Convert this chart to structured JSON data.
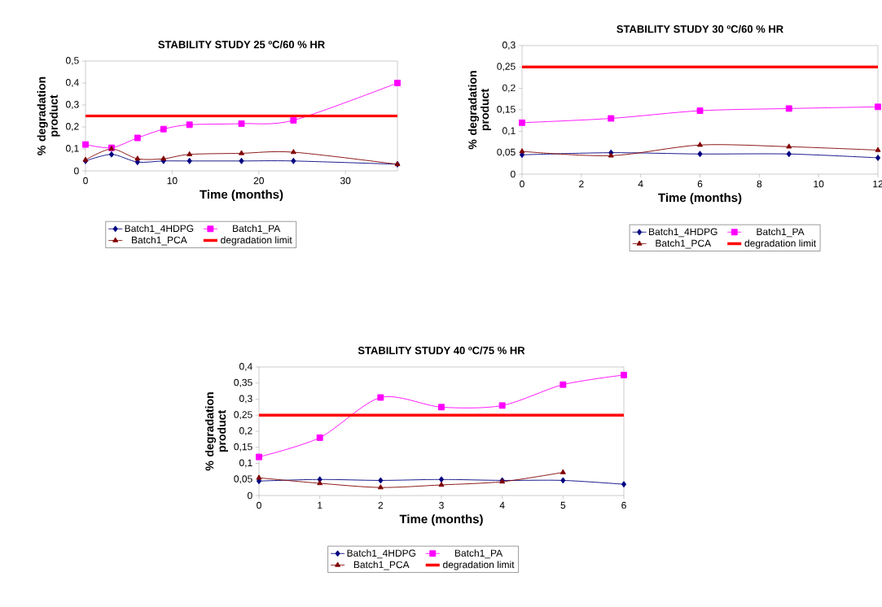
{
  "chart_data": [
    {
      "type": "line",
      "title": "STABILITY STUDY 25 ºC/60 % HR",
      "xlabel": "Time (months)",
      "ylabel": "% degradation product",
      "legend": "bottom",
      "x": [
        0,
        3,
        6,
        9,
        12,
        18,
        24,
        36
      ],
      "xlim": [
        0,
        36
      ],
      "xticks": [
        0,
        10,
        20,
        30
      ],
      "ylim": [
        0,
        0.5
      ],
      "yticks": [
        0,
        {
          "value": 0.1,
          "label": "0,1"
        },
        {
          "value": 0.2,
          "label": "0,2"
        },
        {
          "value": 0.3,
          "label": "0,3"
        },
        {
          "value": 0.4,
          "label": "0,4"
        },
        {
          "value": 0.5,
          "label": "0,5"
        }
      ],
      "series": [
        {
          "name": "Batch1_4HDPG",
          "color": "#000080",
          "marker": "diamond",
          "values": [
            0.045,
            0.075,
            0.04,
            0.045,
            0.045,
            0.045,
            0.045,
            0.03
          ]
        },
        {
          "name": "Batch1_PA",
          "color": "#ff00ff",
          "marker": "square",
          "values": [
            0.12,
            0.105,
            0.15,
            0.19,
            0.21,
            0.215,
            0.23,
            0.4
          ]
        },
        {
          "name": "Batch1_PCA",
          "color": "#800000",
          "marker": "triangle",
          "values": [
            0.05,
            0.1,
            0.055,
            0.055,
            0.075,
            0.08,
            0.085,
            0.03
          ]
        },
        {
          "name": "degradation limit",
          "color": "#ff0000",
          "marker": "none",
          "x": [
            0,
            36
          ],
          "values": [
            0.25,
            0.25
          ]
        }
      ]
    },
    {
      "type": "line",
      "title": "STABILITY STUDY 30 ºC/60 % HR",
      "xlabel": "Time (months)",
      "ylabel": "% degradation product",
      "legend": "bottom",
      "x": [
        0,
        3,
        6,
        9,
        12
      ],
      "xlim": [
        0,
        12
      ],
      "xticks": [
        0,
        2,
        4,
        6,
        8,
        10,
        12
      ],
      "ylim": [
        0,
        0.3
      ],
      "yticks": [
        0,
        {
          "value": 0.05,
          "label": "0,05"
        },
        {
          "value": 0.1,
          "label": "0,1"
        },
        {
          "value": 0.15,
          "label": "0,15"
        },
        {
          "value": 0.2,
          "label": "0,2"
        },
        {
          "value": 0.25,
          "label": "0,25"
        },
        {
          "value": 0.3,
          "label": "0,3"
        }
      ],
      "series": [
        {
          "name": "Batch1_4HDPG",
          "color": "#000080",
          "marker": "diamond",
          "values": [
            0.045,
            0.05,
            0.047,
            0.047,
            0.038
          ]
        },
        {
          "name": "Batch1_PA",
          "color": "#ff00ff",
          "marker": "square",
          "values": [
            0.12,
            0.13,
            0.148,
            0.153,
            0.157
          ]
        },
        {
          "name": "Batch1_PCA",
          "color": "#800000",
          "marker": "triangle",
          "values": [
            0.053,
            0.043,
            0.068,
            0.064,
            0.056
          ]
        },
        {
          "name": "degradation limit",
          "color": "#ff0000",
          "marker": "none",
          "x": [
            0,
            12
          ],
          "values": [
            0.25,
            0.25
          ]
        }
      ]
    },
    {
      "type": "line",
      "title": "STABILITY STUDY 40 ºC/75 % HR",
      "xlabel": "Time (months)",
      "ylabel": "% degradation product",
      "legend": "bottom",
      "x": [
        0,
        1,
        2,
        3,
        4,
        5,
        6
      ],
      "xlim": [
        0,
        6
      ],
      "xticks": [
        0,
        1,
        2,
        3,
        4,
        5,
        6
      ],
      "ylim": [
        0,
        0.4
      ],
      "yticks": [
        0,
        {
          "value": 0.05,
          "label": "0,05"
        },
        {
          "value": 0.1,
          "label": "0,1"
        },
        {
          "value": 0.15,
          "label": "0,15"
        },
        {
          "value": 0.2,
          "label": "0,2"
        },
        {
          "value": 0.25,
          "label": "0,25"
        },
        {
          "value": 0.3,
          "label": "0,3"
        },
        {
          "value": 0.35,
          "label": "0,35"
        },
        {
          "value": 0.4,
          "label": "0,4"
        }
      ],
      "series": [
        {
          "name": "Batch1_4HDPG",
          "color": "#000080",
          "marker": "diamond",
          "values": [
            0.045,
            0.05,
            0.047,
            0.05,
            0.047,
            0.047,
            0.035
          ]
        },
        {
          "name": "Batch1_PA",
          "color": "#ff00ff",
          "marker": "square",
          "values": [
            0.12,
            0.18,
            0.305,
            0.275,
            0.28,
            0.345,
            0.375
          ]
        },
        {
          "name": "Batch1_PCA",
          "color": "#800000",
          "marker": "triangle",
          "values": [
            0.055,
            0.038,
            0.025,
            0.033,
            0.043,
            0.072,
            null
          ]
        },
        {
          "name": "degradation limit",
          "color": "#ff0000",
          "marker": "none",
          "x": [
            0,
            6
          ],
          "values": [
            0.25,
            0.25
          ]
        }
      ]
    }
  ]
}
